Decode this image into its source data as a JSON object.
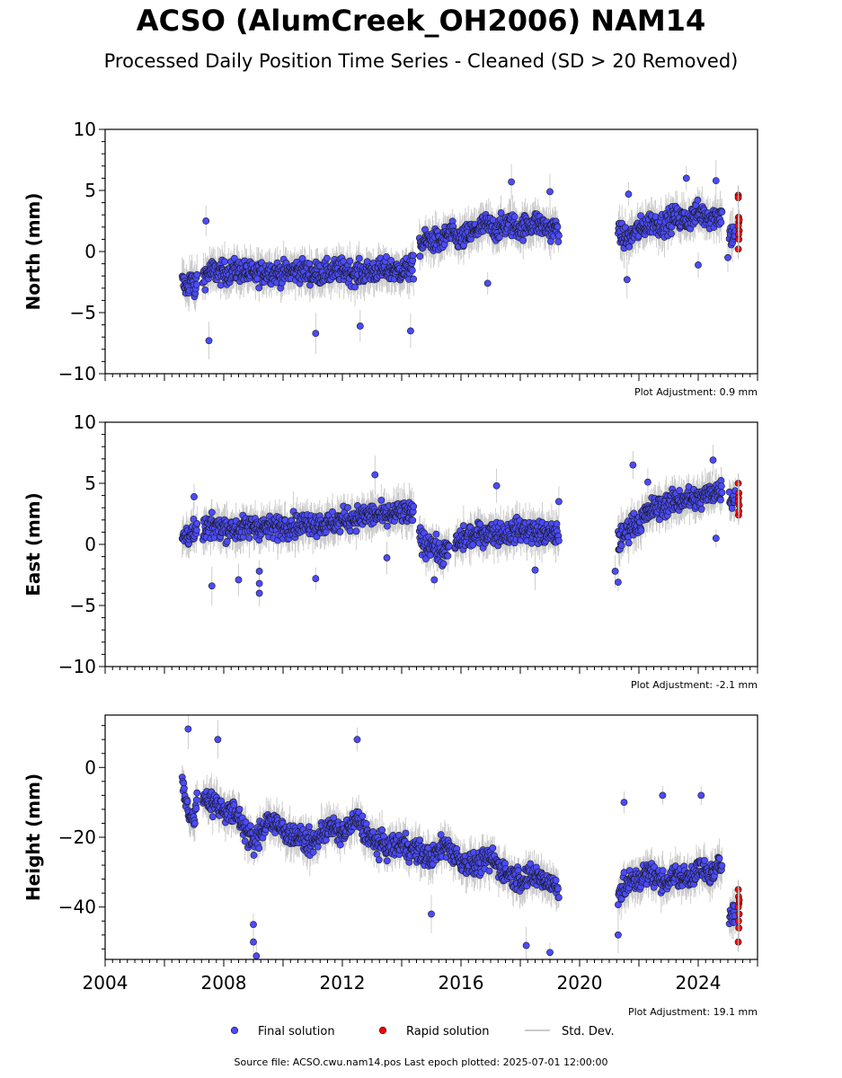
{
  "title": "ACSO (AlumCreek_OH2006) NAM14",
  "subtitle": "Processed Daily Position Time Series - Cleaned (SD > 20 Removed)",
  "footer": "Source file: ACSO.cwu.nam14.pos  Last epoch plotted: 2025-07-01 12:00:00",
  "colors": {
    "final": "#4b4bff",
    "rapid": "#ff0000",
    "std_dev": "#b8b8b8",
    "marker_edge": "#1a1a1a"
  },
  "chart_data": [
    {
      "type": "scatter",
      "ylabel": "North (mm)",
      "xlabel": "",
      "xlim": [
        2004,
        2026
      ],
      "ylim": [
        -10,
        10
      ],
      "yticks": [
        -10,
        -5,
        0,
        5,
        10
      ],
      "xticks": [],
      "adjustment": "Plot Adjustment: 0.9 mm",
      "series": [
        {
          "name": "Final solution",
          "segments": [
            {
              "x": [
                2006.6,
                2006.75,
                2006.9,
                2007.05,
                2007.1
              ],
              "y": [
                -2.5,
                -3.0,
                -2.2,
                -3.3,
                -2.0
              ]
            },
            {
              "x": [
                2007.3,
                2007.6,
                2008.0,
                2008.5,
                2009.0,
                2009.5,
                2010.0,
                2010.5,
                2011.0,
                2011.5,
                2012.0,
                2012.5,
                2013.0,
                2013.5,
                2014.0,
                2014.4
              ],
              "y": [
                -2.0,
                -1.6,
                -1.8,
                -1.5,
                -1.9,
                -1.6,
                -1.8,
                -1.5,
                -1.8,
                -1.7,
                -1.5,
                -1.8,
                -1.6,
                -1.5,
                -1.6,
                -1.3
              ]
            },
            {
              "x": [
                2014.6,
                2014.8,
                2015.0,
                2015.3,
                2015.6,
                2015.8,
                2016.0,
                2016.4,
                2016.8,
                2017.2,
                2017.6,
                2018.0,
                2018.5,
                2019.0,
                2019.3
              ],
              "y": [
                0.5,
                0.8,
                1.0,
                0.7,
                1.5,
                1.2,
                1.0,
                1.6,
                2.2,
                1.8,
                2.3,
                1.9,
                2.4,
                1.8,
                1.9
              ]
            },
            {
              "x": [
                2021.3,
                2021.6,
                2022.0,
                2022.4,
                2022.8,
                2023.2,
                2023.6,
                2024.0,
                2024.4,
                2024.8
              ],
              "y": [
                1.4,
                1.0,
                1.8,
                2.4,
                2.2,
                2.8,
                2.5,
                3.2,
                2.8,
                3.0
              ]
            },
            {
              "x": [
                2025.05,
                2025.15,
                2025.25
              ],
              "y": [
                1.6,
                1.2,
                1.8
              ]
            }
          ],
          "outliers": [
            {
              "x": 2007.5,
              "y": -7.3
            },
            {
              "x": 2011.1,
              "y": -6.7
            },
            {
              "x": 2012.6,
              "y": -6.1
            },
            {
              "x": 2014.3,
              "y": -6.5
            },
            {
              "x": 2007.4,
              "y": 2.5
            },
            {
              "x": 2016.9,
              "y": -2.6
            },
            {
              "x": 2017.7,
              "y": 5.7
            },
            {
              "x": 2019.0,
              "y": 4.9
            },
            {
              "x": 2021.6,
              "y": -2.3
            },
            {
              "x": 2021.65,
              "y": 4.7
            },
            {
              "x": 2023.6,
              "y": 6.0
            },
            {
              "x": 2024.0,
              "y": -1.1
            },
            {
              "x": 2024.6,
              "y": 5.8
            },
            {
              "x": 2025.0,
              "y": -0.5
            }
          ]
        },
        {
          "name": "Rapid solution",
          "points": [
            {
              "x": 2025.35,
              "y": 4.6
            },
            {
              "x": 2025.35,
              "y": 4.4
            },
            {
              "x": 2025.36,
              "y": 2.8
            },
            {
              "x": 2025.37,
              "y": 2.4
            },
            {
              "x": 2025.35,
              "y": 2.1
            },
            {
              "x": 2025.38,
              "y": 1.7
            },
            {
              "x": 2025.36,
              "y": 1.4
            },
            {
              "x": 2025.37,
              "y": 1.0
            },
            {
              "x": 2025.35,
              "y": 0.2
            },
            {
              "x": 2025.38,
              "y": 2.6
            }
          ]
        }
      ]
    },
    {
      "type": "scatter",
      "ylabel": "East (mm)",
      "xlabel": "",
      "xlim": [
        2004,
        2026
      ],
      "ylim": [
        -10,
        10
      ],
      "yticks": [
        -10,
        -5,
        0,
        5,
        10
      ],
      "xticks": [],
      "adjustment": "Plot Adjustment: -2.1 mm",
      "series": [
        {
          "name": "Final solution",
          "segments": [
            {
              "x": [
                2006.6,
                2006.75,
                2006.9,
                2007.05,
                2007.1
              ],
              "y": [
                0.5,
                0.8,
                1.0,
                0.6,
                1.2
              ]
            },
            {
              "x": [
                2007.3,
                2007.8,
                2008.4,
                2009.0,
                2009.5,
                2010.0,
                2010.5,
                2011.0,
                2011.5,
                2012.0,
                2012.5,
                2013.0,
                2013.5,
                2014.0,
                2014.4
              ],
              "y": [
                1.2,
                1.5,
                1.2,
                1.5,
                1.3,
                1.5,
                1.6,
                1.8,
                1.6,
                2.0,
                2.2,
                2.4,
                2.3,
                2.6,
                2.4
              ]
            },
            {
              "x": [
                2014.6,
                2014.8,
                2015.0,
                2015.3,
                2015.6
              ],
              "y": [
                0.8,
                -0.2,
                0.2,
                -0.8,
                -0.5
              ]
            },
            {
              "x": [
                2015.8,
                2016.2,
                2016.6,
                2017.0,
                2017.5,
                2018.0,
                2018.5,
                2019.0,
                2019.3
              ],
              "y": [
                0.0,
                0.6,
                0.8,
                1.0,
                0.9,
                1.2,
                1.0,
                0.8,
                0.9
              ]
            },
            {
              "x": [
                2021.3,
                2021.5,
                2021.7,
                2022.0,
                2022.4,
                2022.8,
                2023.2,
                2023.6,
                2024.0,
                2024.4,
                2024.8
              ],
              "y": [
                0.2,
                0.8,
                1.5,
                1.8,
                2.8,
                3.2,
                3.5,
                3.8,
                3.6,
                4.2,
                4.5
              ]
            },
            {
              "x": [
                2025.05,
                2025.15,
                2025.25
              ],
              "y": [
                4.0,
                3.6,
                4.2
              ]
            }
          ],
          "outliers": [
            {
              "x": 2007.0,
              "y": 3.9
            },
            {
              "x": 2007.6,
              "y": -3.4
            },
            {
              "x": 2008.5,
              "y": -2.9
            },
            {
              "x": 2009.2,
              "y": -2.2
            },
            {
              "x": 2009.2,
              "y": -3.2
            },
            {
              "x": 2009.2,
              "y": -4.0
            },
            {
              "x": 2011.1,
              "y": -2.8
            },
            {
              "x": 2013.1,
              "y": 5.7
            },
            {
              "x": 2013.5,
              "y": -1.1
            },
            {
              "x": 2015.1,
              "y": -2.9
            },
            {
              "x": 2017.2,
              "y": 4.8
            },
            {
              "x": 2018.5,
              "y": -2.1
            },
            {
              "x": 2019.3,
              "y": 3.5
            },
            {
              "x": 2021.2,
              "y": -2.2
            },
            {
              "x": 2021.3,
              "y": -3.1
            },
            {
              "x": 2021.8,
              "y": 6.5
            },
            {
              "x": 2022.3,
              "y": 5.1
            },
            {
              "x": 2024.5,
              "y": 6.9
            },
            {
              "x": 2024.6,
              "y": 0.5
            }
          ]
        },
        {
          "name": "Rapid solution",
          "points": [
            {
              "x": 2025.35,
              "y": 5.0
            },
            {
              "x": 2025.37,
              "y": 4.2
            },
            {
              "x": 2025.36,
              "y": 3.8
            },
            {
              "x": 2025.35,
              "y": 3.5
            },
            {
              "x": 2025.38,
              "y": 3.2
            },
            {
              "x": 2025.36,
              "y": 2.4
            },
            {
              "x": 2025.37,
              "y": 2.7
            }
          ]
        }
      ]
    },
    {
      "type": "scatter",
      "ylabel": "Height (mm)",
      "xlabel": "",
      "xlim": [
        2004,
        2026
      ],
      "ylim": [
        -55,
        15
      ],
      "yticks": [
        -40,
        -20,
        0
      ],
      "xticks": [
        2004,
        2008,
        2012,
        2016,
        2020,
        2024
      ],
      "adjustment": "Plot Adjustment: 19.1 mm",
      "series": [
        {
          "name": "Final solution",
          "segments": [
            {
              "x": [
                2006.6,
                2006.7,
                2006.8,
                2006.9,
                2007.0,
                2007.1
              ],
              "y": [
                -3,
                -8,
                -12,
                -16,
                -14,
                -10
              ]
            },
            {
              "x": [
                2007.3,
                2007.6,
                2008.0,
                2008.5,
                2009.0,
                2009.5,
                2010.0,
                2010.5,
                2011.0,
                2011.5,
                2012.0,
                2012.5,
                2013.0,
                2013.5,
                2014.0,
                2014.5,
                2015.0,
                2015.5,
                2016.0,
                2016.5,
                2017.0,
                2017.5,
                2018.0,
                2018.5,
                2019.0,
                2019.3
              ],
              "y": [
                -8,
                -10,
                -12,
                -14,
                -22,
                -15,
                -18,
                -20,
                -22,
                -17,
                -19,
                -15,
                -21,
                -23,
                -22,
                -24,
                -26,
                -22,
                -27,
                -28,
                -26,
                -30,
                -32,
                -31,
                -33,
                -35
              ]
            },
            {
              "x": [
                2021.3,
                2021.7,
                2022.0,
                2022.4,
                2022.8,
                2023.2,
                2023.6,
                2024.0,
                2024.4,
                2024.8
              ],
              "y": [
                -36,
                -33,
                -32,
                -30,
                -33,
                -31,
                -32,
                -29,
                -31,
                -28
              ]
            },
            {
              "x": [
                2025.05,
                2025.15,
                2025.25
              ],
              "y": [
                -42,
                -40,
                -43
              ]
            }
          ],
          "outliers": [
            {
              "x": 2006.8,
              "y": 11
            },
            {
              "x": 2007.8,
              "y": 8
            },
            {
              "x": 2012.5,
              "y": 8
            },
            {
              "x": 2009.0,
              "y": -45
            },
            {
              "x": 2009.0,
              "y": -50
            },
            {
              "x": 2009.1,
              "y": -54
            },
            {
              "x": 2021.3,
              "y": -48
            },
            {
              "x": 2021.5,
              "y": -10
            },
            {
              "x": 2022.8,
              "y": -8
            },
            {
              "x": 2024.1,
              "y": -8
            },
            {
              "x": 2018.2,
              "y": -51
            },
            {
              "x": 2019.0,
              "y": -53
            },
            {
              "x": 2015.0,
              "y": -42
            }
          ]
        },
        {
          "name": "Rapid solution",
          "points": [
            {
              "x": 2025.35,
              "y": -35
            },
            {
              "x": 2025.36,
              "y": -37
            },
            {
              "x": 2025.37,
              "y": -39
            },
            {
              "x": 2025.35,
              "y": -40
            },
            {
              "x": 2025.38,
              "y": -42
            },
            {
              "x": 2025.36,
              "y": -44
            },
            {
              "x": 2025.37,
              "y": -46
            },
            {
              "x": 2025.35,
              "y": -50
            },
            {
              "x": 2025.38,
              "y": -38
            }
          ]
        }
      ]
    }
  ],
  "legend": {
    "final_label": "Final solution",
    "rapid_label": "Rapid solution",
    "std_label": "Std. Dev."
  }
}
